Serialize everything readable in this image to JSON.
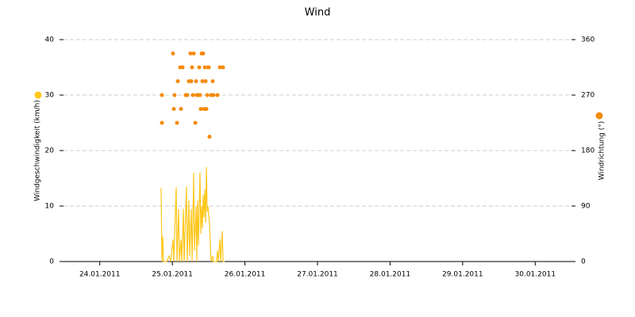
{
  "chart_data": {
    "type": "wind",
    "title": "Wind",
    "ylabel": "Windgeschwindigkeit (km/h)",
    "y2label": "Windrichtung (°)",
    "xlim": [
      0,
      7
    ],
    "xticks": [
      {
        "value": 0.5,
        "label": "24.01.2011"
      },
      {
        "value": 1.5,
        "label": "25.01.2011"
      },
      {
        "value": 2.5,
        "label": "26.01.2011"
      },
      {
        "value": 3.5,
        "label": "27.01.2011"
      },
      {
        "value": 4.5,
        "label": "28.01.2011"
      },
      {
        "value": 5.5,
        "label": "29.01.2011"
      },
      {
        "value": 6.5,
        "label": "30.01.2011"
      }
    ],
    "ylim": [
      0,
      40
    ],
    "yticks": [
      0,
      10,
      20,
      30,
      40
    ],
    "y2lim": [
      0,
      360
    ],
    "y2ticks": [
      0,
      90,
      180,
      270,
      360
    ],
    "grid": true,
    "series": [
      {
        "type": "line",
        "color": "#ffc61a",
        "x": [
          1.345,
          1.356,
          1.367,
          1.378,
          1.422,
          1.455,
          1.477,
          1.509,
          1.52,
          1.553,
          1.564,
          1.586,
          1.597,
          1.619,
          1.63,
          1.652,
          1.662,
          1.695,
          1.706,
          1.728,
          1.739,
          1.761,
          1.772,
          1.794,
          1.805,
          1.827,
          1.837,
          1.848,
          1.859,
          1.881,
          1.892,
          1.903,
          1.914,
          1.925,
          1.936,
          1.947,
          1.958,
          1.969,
          1.98,
          1.991,
          2.002,
          2.012,
          2.023,
          2.034,
          2.056,
          2.067,
          2.111,
          2.122,
          2.133,
          2.155,
          2.166,
          2.187,
          2.198,
          2.22
        ],
        "values": [
          13.3,
          0,
          4.5,
          0,
          0,
          1,
          0,
          4,
          0,
          13.4,
          0,
          9.5,
          0,
          4,
          0,
          9.5,
          0,
          13.5,
          0,
          11,
          1,
          9.5,
          0,
          16,
          2,
          10,
          0,
          11,
          3,
          16,
          5,
          10,
          6,
          12,
          8,
          13,
          7,
          17,
          9,
          10,
          8,
          7,
          3,
          0,
          1,
          0,
          0,
          2,
          0,
          4,
          0,
          5.5,
          0,
          0
        ]
      },
      {
        "type": "scatter",
        "axis": "y2",
        "color": "#f58a0b",
        "x": [
          1.356,
          1.356,
          1.509,
          1.531,
          1.52,
          1.564,
          1.575,
          1.608,
          1.619,
          1.641,
          1.684,
          1.706,
          1.728,
          1.75,
          1.761,
          1.772,
          1.783,
          1.794,
          1.816,
          1.827,
          1.837,
          1.859,
          1.87,
          1.881,
          1.892,
          1.903,
          1.914,
          1.925,
          1.936,
          1.947,
          1.958,
          1.969,
          1.98,
          1.991,
          2.002,
          2.012,
          2.034,
          2.056,
          2.067,
          2.122,
          2.155,
          2.198
        ],
        "values": [
          270,
          225,
          337.5,
          270,
          247.5,
          225,
          292.5,
          315,
          247.5,
          315,
          270,
          270,
          292.5,
          337.5,
          292.5,
          315,
          270,
          337.5,
          225,
          292.5,
          270,
          270,
          315,
          270,
          247.5,
          337.5,
          292.5,
          337.5,
          247.5,
          315,
          292.5,
          247.5,
          270,
          315,
          315,
          202.5,
          270,
          292.5,
          270,
          270,
          315,
          315
        ]
      }
    ]
  }
}
